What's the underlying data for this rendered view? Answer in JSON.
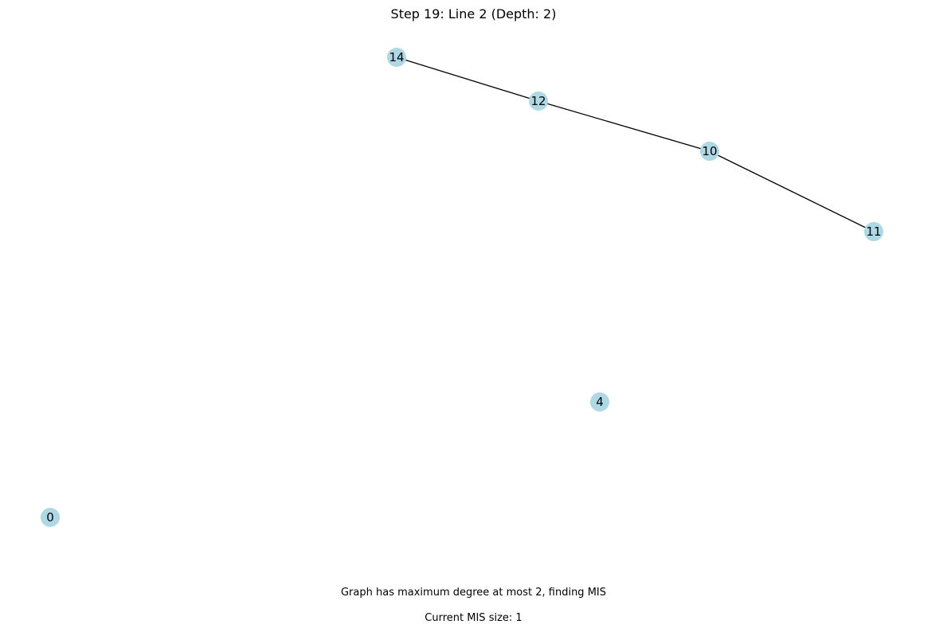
{
  "title": "Step 19: Line 2 (Depth: 2)",
  "captions": {
    "status": "Graph has maximum degree at most 2, finding MIS",
    "mis_size": "Current MIS size: 1"
  },
  "colors": {
    "node_fill": "#add8e6",
    "edge": "#000000"
  },
  "graph": {
    "nodes": [
      {
        "id": "14",
        "label": "14"
      },
      {
        "id": "12",
        "label": "12"
      },
      {
        "id": "10",
        "label": "10"
      },
      {
        "id": "11",
        "label": "11"
      },
      {
        "id": "4",
        "label": "4"
      },
      {
        "id": "0",
        "label": "0"
      }
    ],
    "edges": [
      [
        "14",
        "12"
      ],
      [
        "12",
        "10"
      ],
      [
        "10",
        "11"
      ]
    ]
  }
}
